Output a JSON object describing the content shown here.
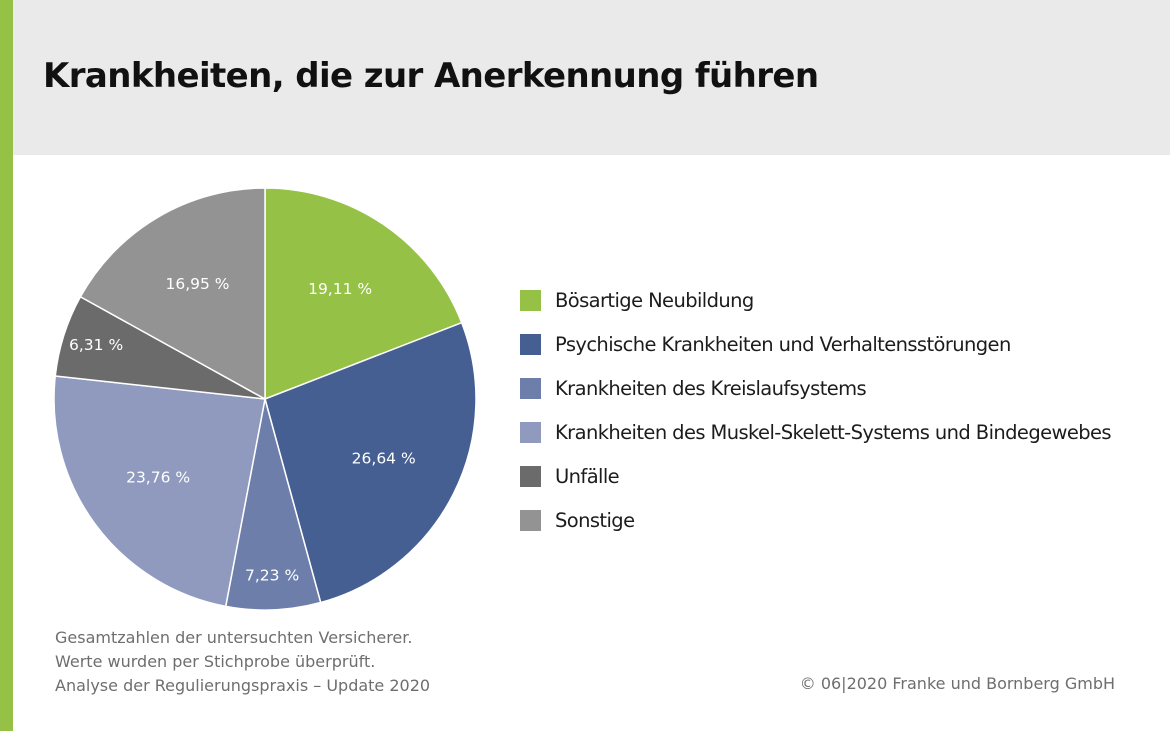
{
  "title": "Krankheiten, die zur Anerkennung führen",
  "colors": {
    "accent": "#95c146",
    "header_background": "#eaeaea"
  },
  "chart_data": {
    "type": "pie",
    "unit": "%",
    "slices": [
      {
        "name": "Bösartige Neubildung",
        "value": 19.11,
        "label": "19,11 %",
        "color": "#95c146"
      },
      {
        "name": "Psychische Krankheiten und Verhaltensstörungen",
        "value": 26.64,
        "label": "26,64 %",
        "color": "#455f92"
      },
      {
        "name": "Krankheiten des Kreislaufsystems",
        "value": 7.23,
        "label": "7,23 %",
        "color": "#6d7eaa"
      },
      {
        "name": "Krankheiten des Muskel-Skelett-Systems und Bindegewebes",
        "value": 23.76,
        "label": "23,76 %",
        "color": "#8f9abe"
      },
      {
        "name": "Unfälle",
        "value": 6.31,
        "label": "6,31 %",
        "color": "#6b6b6b"
      },
      {
        "name": "Sonstige",
        "value": 16.95,
        "label": "16,95 %",
        "color": "#939393"
      }
    ],
    "legend_position": "right",
    "start_angle": "12 o'clock",
    "direction": "clockwise"
  },
  "footnote": {
    "lines": [
      "Gesamtzahlen der untersuchten Versicherer.",
      "Werte wurden per Stichprobe überprüft.",
      "Analyse der Regulierungspraxis – Update 2020"
    ]
  },
  "copyright": "© 06|2020 Franke und Bornberg GmbH"
}
